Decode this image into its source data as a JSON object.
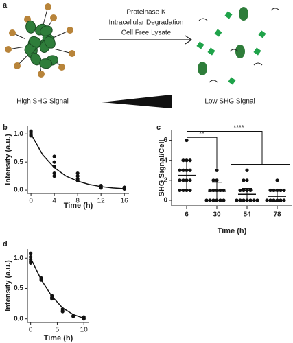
{
  "diagram": {
    "label": "a",
    "arrow_labels": [
      "Proteinase K",
      "Intracellular Degradation",
      "Cell Free Lysate"
    ],
    "left_label": "High SHG Signal",
    "right_label": "Low SHG Signal"
  },
  "chart_data": [
    {
      "type": "scatter",
      "label": "b",
      "x_label": "Time (h)",
      "y_label": "Intensity (a.u.)",
      "xlim": [
        -0.6,
        16.8
      ],
      "ylim": [
        -0.06,
        1.15
      ],
      "xticks": [
        0,
        4,
        8,
        12,
        16
      ],
      "yticks": [
        {
          "value": 0,
          "label": "0.0"
        },
        {
          "value": 0.5,
          "label": "0.5"
        },
        {
          "value": 1,
          "label": "1.0"
        }
      ],
      "points": {
        "x": [
          0,
          0,
          0,
          0,
          0,
          4,
          4,
          4,
          4,
          4,
          8,
          8,
          8,
          8,
          12,
          12,
          12,
          12,
          16,
          16,
          16,
          16
        ],
        "values": [
          1.05,
          1.03,
          1.0,
          0.98,
          0.97,
          0.6,
          0.5,
          0.42,
          0.3,
          0.25,
          0.3,
          0.25,
          0.2,
          0.17,
          0.08,
          0.06,
          0.05,
          0.04,
          0.05,
          0.04,
          0.03,
          0.02
        ]
      },
      "fit": {
        "x": [
          0,
          2,
          4,
          6,
          8,
          10,
          12,
          14,
          16
        ],
        "values": [
          1,
          0.63,
          0.4,
          0.25,
          0.16,
          0.1,
          0.063,
          0.04,
          0.025
        ]
      }
    },
    {
      "type": "dot",
      "label": "c",
      "x_label": "Time (h)",
      "y_label": "SHG Signal/Cell",
      "ylim": [
        -0.55,
        7
      ],
      "yticks": [
        0,
        2,
        4,
        6
      ],
      "categories": [
        "6",
        "30",
        "54",
        "78"
      ],
      "values": [
        [
          6,
          4,
          4,
          4,
          3,
          3,
          3,
          3,
          2,
          2,
          2,
          2,
          1,
          1,
          1,
          1
        ],
        [
          3,
          2,
          2,
          1,
          1,
          1,
          1,
          1,
          0,
          0,
          0,
          0,
          0,
          0
        ],
        [
          3,
          2,
          2,
          1,
          1,
          1,
          1,
          0,
          0,
          0,
          0,
          0,
          0,
          0
        ],
        [
          2,
          1,
          1,
          1,
          1,
          1,
          0,
          0,
          0,
          0,
          0,
          0
        ]
      ],
      "means": [
        2.5,
        0.9,
        0.6,
        0.4
      ],
      "sd": [
        1.5,
        0.9,
        0.6,
        0.5
      ],
      "annotations": [
        "**",
        "****"
      ]
    },
    {
      "type": "scatter",
      "label": "d",
      "x_label": "Time (h)",
      "y_label": "Intensity (a.u.)",
      "xlim": [
        -0.6,
        11
      ],
      "ylim": [
        -0.06,
        1.15
      ],
      "xticks": [
        0,
        5,
        10
      ],
      "yticks": [
        {
          "value": 0,
          "label": "0.0"
        },
        {
          "value": 0.5,
          "label": "0.5"
        },
        {
          "value": 1,
          "label": "1.0"
        }
      ],
      "points": {
        "x": [
          0,
          0,
          0,
          0,
          0,
          2,
          2,
          2,
          4,
          4,
          4,
          6,
          6,
          6,
          8,
          8,
          10,
          10,
          10
        ],
        "values": [
          1.08,
          1.02,
          0.98,
          0.95,
          0.92,
          0.67,
          0.65,
          0.64,
          0.38,
          0.35,
          0.33,
          0.16,
          0.13,
          0.12,
          0.05,
          0.04,
          0.03,
          0.01,
          0
        ]
      },
      "fit": {
        "x": [
          0,
          2,
          4,
          6,
          8,
          10
        ],
        "values": [
          1,
          0.64,
          0.37,
          0.18,
          0.07,
          0.01
        ]
      }
    }
  ]
}
